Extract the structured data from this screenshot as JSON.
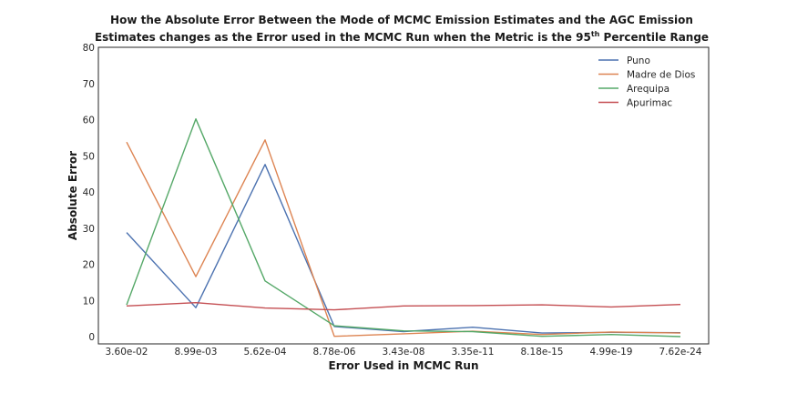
{
  "chart_data": {
    "type": "line",
    "title_line1": "How the Absolute Error Between the Mode of MCMC Emission Estimates and the AGC Emission",
    "title_line2_pre": "Estimates changes as the Error used in the MCMC Run when the Metric is the 95",
    "title_line2_sup": "th",
    "title_line2_post": " Percentile Range",
    "xlabel": "Error Used in MCMC Run",
    "ylabel": "Absolute Error",
    "categories": [
      "3.60e-02",
      "8.99e-03",
      "5.62e-04",
      "8.78e-06",
      "3.43e-08",
      "3.35e-11",
      "8.18e-15",
      "4.99e-19",
      "7.62e-24"
    ],
    "yticks": [
      0,
      10,
      20,
      30,
      40,
      50,
      60,
      70,
      80
    ],
    "ylim": [
      -2,
      80
    ],
    "grid": false,
    "legend_position": "top-right",
    "series": [
      {
        "name": "Puno",
        "color": "#4c72b0",
        "values": [
          28.8,
          8.0,
          47.6,
          2.8,
          1.4,
          2.6,
          1.0,
          1.2,
          1.1
        ]
      },
      {
        "name": "Madre de Dios",
        "color": "#dd8452",
        "values": [
          53.8,
          16.6,
          54.4,
          0.1,
          0.8,
          1.5,
          0.6,
          1.3,
          1.0
        ]
      },
      {
        "name": "Arequipa",
        "color": "#55a868",
        "values": [
          8.8,
          60.2,
          15.4,
          3.0,
          1.6,
          1.4,
          0.1,
          0.6,
          0.0
        ]
      },
      {
        "name": "Apurimac",
        "color": "#c44e52",
        "values": [
          8.5,
          9.4,
          7.9,
          7.4,
          8.5,
          8.6,
          8.8,
          8.2,
          8.9
        ]
      }
    ]
  }
}
